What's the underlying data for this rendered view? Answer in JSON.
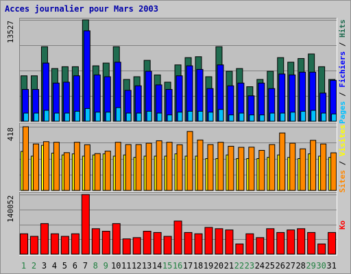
{
  "title": "Acces journalier pour Mars 2003",
  "colors": {
    "hits": "#206c50",
    "files": "#0000ff",
    "pages": "#00c0ff",
    "visits": "#ffff00",
    "sites": "#ff8800",
    "ko": "#ff0000",
    "weekend_day": "#208040",
    "weekday_day": "#000000",
    "background": "#c0c0c0"
  },
  "days": [
    {
      "label": "1",
      "weekend": true
    },
    {
      "label": "2",
      "weekend": true
    },
    {
      "label": "3",
      "weekend": false
    },
    {
      "label": "4",
      "weekend": false
    },
    {
      "label": "5",
      "weekend": false
    },
    {
      "label": "6",
      "weekend": false
    },
    {
      "label": "7",
      "weekend": false
    },
    {
      "label": "8",
      "weekend": true
    },
    {
      "label": "9",
      "weekend": true
    },
    {
      "label": "10",
      "weekend": false
    },
    {
      "label": "11",
      "weekend": false
    },
    {
      "label": "12",
      "weekend": false
    },
    {
      "label": "13",
      "weekend": false
    },
    {
      "label": "14",
      "weekend": false
    },
    {
      "label": "15",
      "weekend": true
    },
    {
      "label": "16",
      "weekend": true
    },
    {
      "label": "17",
      "weekend": false
    },
    {
      "label": "18",
      "weekend": false
    },
    {
      "label": "19",
      "weekend": false
    },
    {
      "label": "20",
      "weekend": false
    },
    {
      "label": "21",
      "weekend": false
    },
    {
      "label": "22",
      "weekend": true
    },
    {
      "label": "23",
      "weekend": true
    },
    {
      "label": "24",
      "weekend": false
    },
    {
      "label": "25",
      "weekend": false
    },
    {
      "label": "26",
      "weekend": false
    },
    {
      "label": "27",
      "weekend": false
    },
    {
      "label": "28",
      "weekend": false
    },
    {
      "label": "29",
      "weekend": true
    },
    {
      "label": "30",
      "weekend": true
    },
    {
      "label": "31",
      "weekend": false
    }
  ],
  "chart_data": [
    {
      "type": "bar",
      "max_label": "13527",
      "ylim": [
        0,
        13527
      ],
      "side_label_parts": [
        {
          "text": "Pages",
          "color": "#00c0ff"
        },
        {
          "text": " / ",
          "color": "#000000"
        },
        {
          "text": "Fichiers",
          "color": "#0000ff"
        },
        {
          "text": " / ",
          "color": "#000000"
        },
        {
          "text": "Hits",
          "color": "#206c50"
        }
      ],
      "series": [
        {
          "key": "hits",
          "values": [
            6065,
            6065,
            9948,
            7035,
            7278,
            7278,
            13527,
            7399,
            7763,
            9948,
            5580,
            5944,
            8127,
            6186,
            5216,
            7521,
            8491,
            8612,
            5944,
            9948,
            6672,
            7035,
            4609,
            5580,
            6672,
            8491,
            7884,
            8370,
            8976,
            7278,
            5580
          ]
        },
        {
          "key": "files",
          "values": [
            4246,
            4246,
            7763,
            5094,
            5216,
            6065,
            12071,
            6186,
            5944,
            7884,
            4125,
            4731,
            6672,
            4852,
            4246,
            6065,
            7399,
            6915,
            4367,
            7521,
            4731,
            5094,
            3397,
            5094,
            4367,
            6307,
            6186,
            6550,
            6550,
            3760,
            5459
          ]
        },
        {
          "key": "pages",
          "values": [
            1092,
            1092,
            1456,
            1092,
            1092,
            1335,
            1699,
            1214,
            1214,
            1820,
            1092,
            1092,
            1335,
            1092,
            849,
            1214,
            1335,
            1335,
            1214,
            1577,
            849,
            1092,
            849,
            849,
            1092,
            1092,
            1214,
            1335,
            1456,
            1092,
            970
          ]
        }
      ]
    },
    {
      "type": "bar",
      "max_label": "418",
      "ylim": [
        0,
        418
      ],
      "side_label_parts": [
        {
          "text": "Sites",
          "color": "#ff8800"
        },
        {
          "text": " / ",
          "color": "#000000"
        },
        {
          "text": "Visites",
          "color": "#ffff00"
        }
      ],
      "series": [
        {
          "key": "sites",
          "values": [
            418,
            305,
            320,
            316,
            248,
            316,
            300,
            242,
            258,
            316,
            301,
            301,
            310,
            326,
            316,
            300,
            387,
            331,
            301,
            316,
            290,
            283,
            284,
            263,
            301,
            377,
            310,
            273,
            329,
            305,
            247
          ]
        },
        {
          "key": "visits",
          "values": [
            256,
            225,
            296,
            245,
            233,
            240,
            225,
            233,
            240,
            225,
            233,
            217,
            225,
            225,
            225,
            240,
            225,
            225,
            209,
            209,
            233,
            209,
            209,
            209,
            217,
            233,
            217,
            209,
            240,
            225,
            217
          ]
        }
      ]
    },
    {
      "type": "bar",
      "max_label": "140052",
      "ylim": [
        0,
        140052
      ],
      "side_label_parts": [
        {
          "text": "Ko",
          "color": "#ff0000"
        }
      ],
      "series": [
        {
          "key": "ko",
          "values": [
            47900,
            41900,
            71800,
            47900,
            41900,
            47900,
            140052,
            59900,
            53900,
            71800,
            35900,
            38900,
            53900,
            50900,
            41900,
            77800,
            50900,
            47900,
            62900,
            59900,
            56900,
            24000,
            47900,
            38900,
            59900,
            50900,
            56900,
            59900,
            50900,
            24000,
            50900
          ]
        }
      ]
    }
  ]
}
